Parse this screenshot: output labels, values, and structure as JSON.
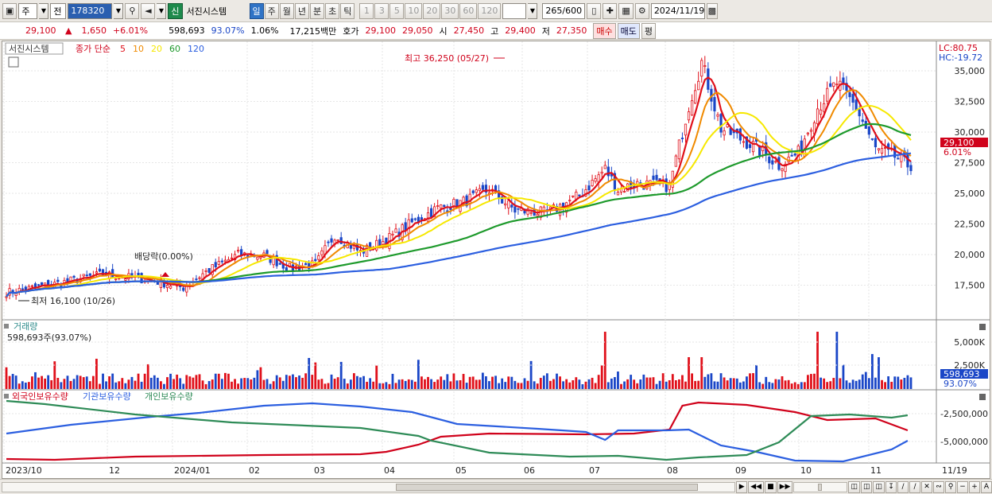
{
  "toolbar": {
    "period_main": "주",
    "prev_label": "전",
    "stock_code": "178320",
    "stock_name_badge": "신",
    "stock_name": "서진시스템",
    "periods": [
      "일",
      "주",
      "월",
      "년",
      "분",
      "초",
      "틱"
    ],
    "selected_period": "일",
    "ticks": [
      "1",
      "3",
      "5",
      "10",
      "20",
      "30",
      "60",
      "120"
    ],
    "count_value": "265",
    "count_max": "/600",
    "date": "2024/11/19"
  },
  "quote": {
    "price": "29,100",
    "arrow": "▲",
    "change": "1,650",
    "change_pct": "+6.01%",
    "volume": "598,693",
    "volume_ratio": "93.07%",
    "turnover_pct": "1.06%",
    "amount": "17,215백만",
    "hoga_label": "호가",
    "ask": "29,100",
    "bid": "29,050",
    "open_label": "시",
    "open": "27,450",
    "high_label": "고",
    "high": "29,400",
    "low_label": "저",
    "low": "27,350",
    "buy_label": "매수",
    "sell_label": "매도",
    "avg_label": "평"
  },
  "price_pane": {
    "legend_name": "서진시스템",
    "ma_label": "종가 단순",
    "ma_periods": [
      {
        "label": "5",
        "color": "#e0101a"
      },
      {
        "label": "10",
        "color": "#f08a00"
      },
      {
        "label": "20",
        "color": "#f6e800"
      },
      {
        "label": "60",
        "color": "#1e9a2c"
      },
      {
        "label": "120",
        "color": "#2c5fe0"
      }
    ],
    "high_note": "최고 36,250 (05/27)",
    "low_note": "최저 16,100 (10/26)",
    "dividend_note": "배당락(0.00%)",
    "lc_label": "LC:80.75",
    "hc_label": "HC:-19.72",
    "y_ticks": [
      "35,000",
      "32,500",
      "30,000",
      "27,500",
      "25,000",
      "22,500",
      "20,000",
      "17,500"
    ],
    "price_tag": "29,100",
    "pct_tag": "6.01%"
  },
  "volume_pane": {
    "title": "거래량",
    "reading": "598,693주(93.07%)",
    "y_ticks": [
      "5,000K",
      "2,500K"
    ],
    "tag": "598,693",
    "tag_pct": "93.07%"
  },
  "holding_pane": {
    "series": [
      {
        "label": "외국인보유수량",
        "color": "#d0021b"
      },
      {
        "label": "기관보유수량",
        "color": "#2c5fe0"
      },
      {
        "label": "개인보유수량",
        "color": "#2e8b57"
      }
    ],
    "y_ticks": [
      "-2,500,000",
      "-5,000,000"
    ]
  },
  "x_axis": {
    "labels": [
      "2023/10",
      "12",
      "2024/01",
      "02",
      "03",
      "04",
      "05",
      "06",
      "07",
      "08",
      "09",
      "10",
      "11",
      "11/19"
    ]
  },
  "colors": {
    "up": "#e0101a",
    "down": "#1a46c7",
    "selected": "#2f73c6"
  }
}
